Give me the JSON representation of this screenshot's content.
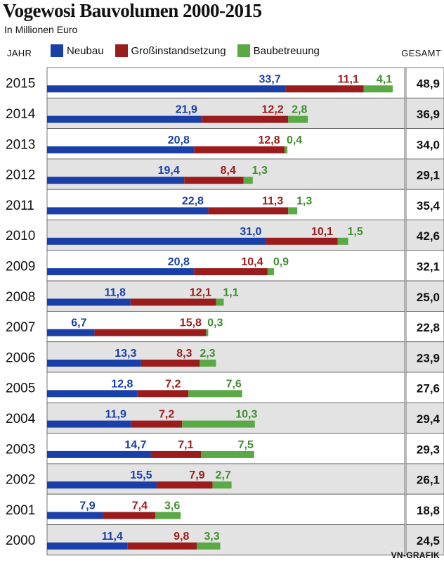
{
  "chart_data": {
    "type": "bar",
    "stacked": true,
    "orientation": "horizontal",
    "title": "Vogewosi Bauvolumen 2000-2015",
    "subtitle": "In Millionen Euro",
    "category_header": "JAHR",
    "total_header": "GESAMT",
    "source": "VN-GRAFIK",
    "categories": [
      "2015",
      "2014",
      "2013",
      "2012",
      "2011",
      "2010",
      "2009",
      "2008",
      "2007",
      "2006",
      "2005",
      "2004",
      "2003",
      "2002",
      "2001",
      "2000"
    ],
    "series": [
      {
        "name": "Neubau",
        "color": "#1a3fa8",
        "label_color": "#1a3fa8",
        "values": [
          33.7,
          21.9,
          20.8,
          19.4,
          22.8,
          31.0,
          20.8,
          11.8,
          6.7,
          13.3,
          12.8,
          11.9,
          14.7,
          15.5,
          7.9,
          11.4
        ],
        "labels": [
          "33,7",
          "21,9",
          "20,8",
          "19,4",
          "22,8",
          "31,0",
          "20,8",
          "11,8",
          "6,7",
          "13,3",
          "12,8",
          "11,9",
          "14,7",
          "15,5",
          "7,9",
          "11,4"
        ]
      },
      {
        "name": "Großinstandsetzung",
        "color": "#9b1c1c",
        "label_color": "#9b1c1c",
        "values": [
          11.1,
          12.2,
          12.8,
          8.4,
          11.3,
          10.1,
          10.4,
          12.1,
          15.8,
          8.3,
          7.2,
          7.2,
          7.1,
          7.9,
          7.4,
          9.8
        ],
        "labels": [
          "11,1",
          "12,2",
          "12,8",
          "8,4",
          "11,3",
          "10,1",
          "10,4",
          "12,1",
          "15,8",
          "8,3",
          "7,2",
          "7,2",
          "7,1",
          "7,9",
          "7,4",
          "9,8"
        ]
      },
      {
        "name": "Baubetreuung",
        "color": "#5aa846",
        "label_color": "#3f8f2f",
        "values": [
          4.1,
          2.8,
          0.4,
          1.3,
          1.3,
          1.5,
          0.9,
          1.1,
          0.3,
          2.3,
          7.6,
          10.3,
          7.5,
          2.7,
          3.6,
          3.3
        ],
        "labels": [
          "4,1",
          "2,8",
          "0,4",
          "1,3",
          "1,3",
          "1,5",
          "0,9",
          "1,1",
          "0,3",
          "2,3",
          "7,6",
          "10,3",
          "7,5",
          "2,7",
          "3,6",
          "3,3"
        ]
      }
    ],
    "totals": [
      "48,9",
      "36,9",
      "34,0",
      "29,1",
      "35,4",
      "42,6",
      "32,1",
      "25,0",
      "22,8",
      "23,9",
      "27,6",
      "29,4",
      "29,3",
      "26,1",
      "18,8",
      "24,5"
    ],
    "xlim": [
      0,
      49
    ],
    "row_shading": "alternating-grey"
  }
}
